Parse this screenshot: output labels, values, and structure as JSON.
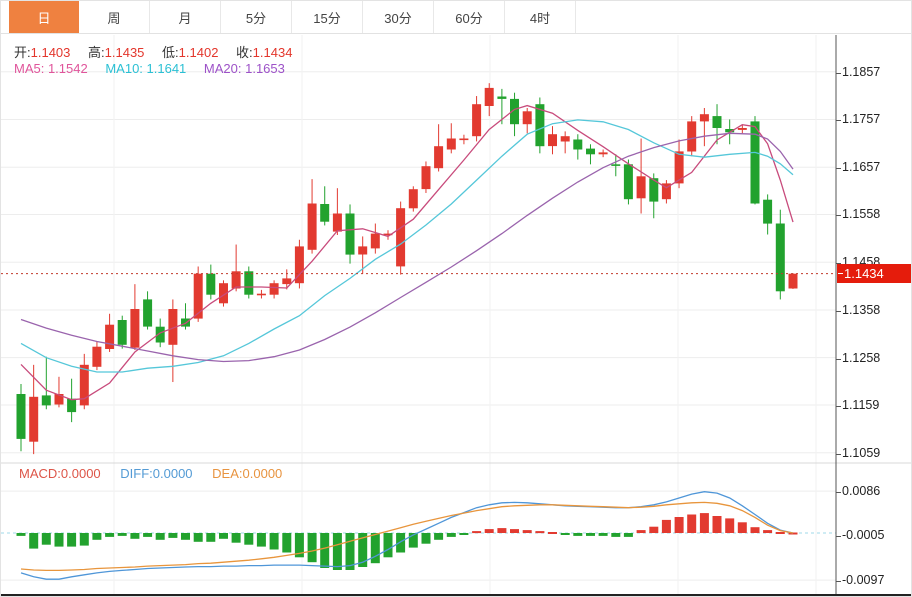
{
  "tabs": {
    "items": [
      {
        "label": "日",
        "active": true
      },
      {
        "label": "周",
        "active": false
      },
      {
        "label": "月",
        "active": false
      },
      {
        "label": "5分",
        "active": false
      },
      {
        "label": "15分",
        "active": false
      },
      {
        "label": "30分",
        "active": false
      },
      {
        "label": "60分",
        "active": false
      },
      {
        "label": "4时",
        "active": false
      }
    ]
  },
  "quote": {
    "open_label": "开:",
    "open": "1.1403",
    "high_label": "高:",
    "high": "1.1435",
    "low_label": "低:",
    "low": "1.1402",
    "close_label": "收:",
    "close": "1.1434"
  },
  "ma_legend": {
    "ma5": "MA5: 1.1542",
    "ma10": "MA10: 1.1641",
    "ma20": "MA20: 1.1653"
  },
  "price_axis": {
    "ticks": [
      "1.1857",
      "1.1757",
      "1.1657",
      "1.1558",
      "1.1458",
      "1.1358",
      "1.1258",
      "1.1159",
      "1.1059"
    ],
    "last_price": "1.1434"
  },
  "macd_panel": {
    "macd": "MACD:0.0000",
    "diff": "DIFF:0.0000",
    "dea": "DEA:0.0000",
    "ticks": [
      "0.0086",
      "-0.0005",
      "-0.0097"
    ]
  },
  "colors": {
    "tab_active_bg": "#ef8140",
    "up_candle": "#e23a30",
    "down_candle": "#22a22e",
    "ma5_line": "#c84b7c",
    "ma10_line": "#55c7d9",
    "ma20_line": "#9a64ad",
    "diff_line": "#4f96d8",
    "dea_line": "#e8953c",
    "last_price_line": "#c0392b",
    "badge_bg": "#e51c0c",
    "grid": "#ededed",
    "zero_dash": "#9fd8e8"
  },
  "chart_data": {
    "type": "candlestick",
    "title": "Daily candlestick chart with MA5/MA10/MA20 overlays and MACD sub-panel",
    "legend": [
      "MA5 1.1542",
      "MA10 1.1641",
      "MA20 1.1653"
    ],
    "ylim": [
      1.1059,
      1.1857
    ],
    "price_ticks": [
      1.1857,
      1.1757,
      1.1657,
      1.1558,
      1.1458,
      1.1358,
      1.1258,
      1.1159,
      1.1059
    ],
    "last_price": 1.1434,
    "ohlc": [
      [
        1.1182,
        1.1203,
        1.1062,
        1.1088
      ],
      [
        1.1082,
        1.1243,
        1.1056,
        1.1176
      ],
      [
        1.1179,
        1.126,
        1.115,
        1.1158
      ],
      [
        1.116,
        1.1218,
        1.1154,
        1.1182
      ],
      [
        1.1172,
        1.1214,
        1.1123,
        1.1144
      ],
      [
        1.1158,
        1.1266,
        1.115,
        1.1243
      ],
      [
        1.1239,
        1.1291,
        1.1232,
        1.1281
      ],
      [
        1.1276,
        1.135,
        1.127,
        1.1327
      ],
      [
        1.1337,
        1.1346,
        1.1277,
        1.1285
      ],
      [
        1.1279,
        1.1412,
        1.1274,
        1.136
      ],
      [
        1.138,
        1.1397,
        1.1317,
        1.1323
      ],
      [
        1.1323,
        1.134,
        1.128,
        1.129
      ],
      [
        1.1285,
        1.138,
        1.1207,
        1.136
      ],
      [
        1.134,
        1.1372,
        1.1317,
        1.1323
      ],
      [
        1.134,
        1.1449,
        1.1333,
        1.1434
      ],
      [
        1.1434,
        1.1453,
        1.138,
        1.139
      ],
      [
        1.1372,
        1.142,
        1.1365,
        1.1414
      ],
      [
        1.1403,
        1.1495,
        1.1397,
        1.1439
      ],
      [
        1.1439,
        1.1449,
        1.1382,
        1.139
      ],
      [
        1.139,
        1.14,
        1.1382,
        1.1392
      ],
      [
        1.139,
        1.142,
        1.1382,
        1.1414
      ],
      [
        1.1412,
        1.1443,
        1.1401,
        1.1424
      ],
      [
        1.1414,
        1.1505,
        1.1403,
        1.1491
      ],
      [
        1.1484,
        1.1632,
        1.1476,
        1.1581
      ],
      [
        1.158,
        1.1617,
        1.1535,
        1.1543
      ],
      [
        1.1522,
        1.1613,
        1.1515,
        1.156
      ],
      [
        1.156,
        1.1579,
        1.1455,
        1.1474
      ],
      [
        1.1474,
        1.1512,
        1.1434,
        1.1491
      ],
      [
        1.1487,
        1.1539,
        1.1476,
        1.1518
      ],
      [
        1.1515,
        1.1525,
        1.1505,
        1.1518
      ],
      [
        1.1449,
        1.1585,
        1.1432,
        1.1571
      ],
      [
        1.1571,
        1.1617,
        1.1564,
        1.1611
      ],
      [
        1.1611,
        1.1669,
        1.1603,
        1.1659
      ],
      [
        1.1655,
        1.1747,
        1.1648,
        1.1701
      ],
      [
        1.1694,
        1.1749,
        1.1686,
        1.1717
      ],
      [
        1.1715,
        1.1725,
        1.1705,
        1.1717
      ],
      [
        1.1722,
        1.1806,
        1.1711,
        1.1789
      ],
      [
        1.1785,
        1.1833,
        1.1764,
        1.1823
      ],
      [
        1.1805,
        1.1821,
        1.1747,
        1.18
      ],
      [
        1.18,
        1.1813,
        1.1722,
        1.1747
      ],
      [
        1.1747,
        1.1781,
        1.1728,
        1.1774
      ],
      [
        1.1789,
        1.1803,
        1.1686,
        1.1701
      ],
      [
        1.1701,
        1.1743,
        1.1684,
        1.1726
      ],
      [
        1.1711,
        1.1732,
        1.1686,
        1.1722
      ],
      [
        1.1715,
        1.1726,
        1.1673,
        1.1694
      ],
      [
        1.1696,
        1.1705,
        1.1663,
        1.1684
      ],
      [
        1.1684,
        1.1694,
        1.1678,
        1.1688
      ],
      [
        1.1663,
        1.1684,
        1.1638,
        1.166
      ],
      [
        1.1663,
        1.1673,
        1.1579,
        1.159
      ],
      [
        1.1592,
        1.1717,
        1.156,
        1.1638
      ],
      [
        1.1634,
        1.1644,
        1.155,
        1.1585
      ],
      [
        1.159,
        1.163,
        1.1581,
        1.1623
      ],
      [
        1.1623,
        1.1715,
        1.1613,
        1.169
      ],
      [
        1.169,
        1.1764,
        1.168,
        1.1753
      ],
      [
        1.1753,
        1.1781,
        1.1701,
        1.1768
      ],
      [
        1.1764,
        1.1789,
        1.1705,
        1.1739
      ],
      [
        1.1737,
        1.1757,
        1.1705,
        1.173
      ],
      [
        1.1735,
        1.1745,
        1.1728,
        1.1739
      ],
      [
        1.1753,
        1.1764,
        1.1579,
        1.1581
      ],
      [
        1.1589,
        1.16,
        1.1516,
        1.1539
      ],
      [
        1.1539,
        1.1568,
        1.138,
        1.1397
      ],
      [
        1.1403,
        1.1435,
        1.1402,
        1.1434
      ]
    ],
    "ma5_points": [
      [
        0,
        1.1244
      ],
      [
        2,
        1.119
      ],
      [
        4,
        1.117
      ],
      [
        5,
        1.1172
      ],
      [
        7,
        1.1205
      ],
      [
        9,
        1.127
      ],
      [
        11,
        1.131
      ],
      [
        13,
        1.133
      ],
      [
        15,
        1.1372
      ],
      [
        17,
        1.1406
      ],
      [
        19,
        1.1406
      ],
      [
        21,
        1.1404
      ],
      [
        23,
        1.146
      ],
      [
        25,
        1.1524
      ],
      [
        27,
        1.1528
      ],
      [
        29,
        1.1512
      ],
      [
        31,
        1.1548
      ],
      [
        33,
        1.161
      ],
      [
        35,
        1.1672
      ],
      [
        37,
        1.1736
      ],
      [
        39,
        1.1778
      ],
      [
        40,
        1.1786
      ],
      [
        42,
        1.177
      ],
      [
        44,
        1.1734
      ],
      [
        46,
        1.17
      ],
      [
        48,
        1.1664
      ],
      [
        50,
        1.163
      ],
      [
        51,
        1.1614
      ],
      [
        53,
        1.1646
      ],
      [
        55,
        1.1714
      ],
      [
        57,
        1.1746
      ],
      [
        58,
        1.1742
      ],
      [
        59,
        1.1706
      ],
      [
        60,
        1.163
      ],
      [
        61,
        1.1542
      ]
    ],
    "ma10_points": [
      [
        0,
        1.1288
      ],
      [
        2,
        1.1258
      ],
      [
        4,
        1.124
      ],
      [
        6,
        1.1228
      ],
      [
        8,
        1.1228
      ],
      [
        10,
        1.1236
      ],
      [
        12,
        1.124
      ],
      [
        14,
        1.1248
      ],
      [
        16,
        1.1262
      ],
      [
        18,
        1.1288
      ],
      [
        20,
        1.1318
      ],
      [
        22,
        1.1346
      ],
      [
        24,
        1.1388
      ],
      [
        26,
        1.1424
      ],
      [
        28,
        1.1464
      ],
      [
        30,
        1.1496
      ],
      [
        32,
        1.1536
      ],
      [
        34,
        1.158
      ],
      [
        36,
        1.163
      ],
      [
        38,
        1.168
      ],
      [
        40,
        1.1726
      ],
      [
        42,
        1.1748
      ],
      [
        44,
        1.1756
      ],
      [
        46,
        1.1752
      ],
      [
        48,
        1.1736
      ],
      [
        50,
        1.1708
      ],
      [
        52,
        1.1684
      ],
      [
        54,
        1.1678
      ],
      [
        56,
        1.1684
      ],
      [
        58,
        1.1688
      ],
      [
        59,
        1.168
      ],
      [
        60,
        1.1664
      ],
      [
        61,
        1.1641
      ]
    ],
    "ma20_points": [
      [
        0,
        1.1338
      ],
      [
        2,
        1.132
      ],
      [
        4,
        1.1305
      ],
      [
        6,
        1.1292
      ],
      [
        8,
        1.1282
      ],
      [
        10,
        1.1272
      ],
      [
        12,
        1.1262
      ],
      [
        14,
        1.1254
      ],
      [
        16,
        1.125
      ],
      [
        18,
        1.1252
      ],
      [
        20,
        1.126
      ],
      [
        22,
        1.1274
      ],
      [
        24,
        1.1296
      ],
      [
        26,
        1.1322
      ],
      [
        28,
        1.1352
      ],
      [
        30,
        1.1384
      ],
      [
        32,
        1.1416
      ],
      [
        34,
        1.1448
      ],
      [
        36,
        1.1482
      ],
      [
        38,
        1.1518
      ],
      [
        40,
        1.1556
      ],
      [
        42,
        1.1592
      ],
      [
        44,
        1.1626
      ],
      [
        46,
        1.1656
      ],
      [
        48,
        1.168
      ],
      [
        50,
        1.1698
      ],
      [
        52,
        1.1712
      ],
      [
        54,
        1.1722
      ],
      [
        56,
        1.1728
      ],
      [
        58,
        1.1726
      ],
      [
        59,
        1.1716
      ],
      [
        60,
        1.169
      ],
      [
        61,
        1.1653
      ]
    ],
    "macd": {
      "values_scale": 0.0001,
      "axis_ticks": [
        0.0086,
        -0.0005,
        -0.0097
      ],
      "final_values": {
        "macd": 0.0,
        "diff": 0.0,
        "dea": 0.0
      },
      "hist": [
        -6,
        -32,
        -24,
        -28,
        -28,
        -26,
        -14,
        -8,
        -6,
        -12,
        -8,
        -14,
        -10,
        -14,
        -18,
        -18,
        -12,
        -20,
        -24,
        -28,
        -34,
        -40,
        -50,
        -60,
        -72,
        -76,
        -76,
        -70,
        -62,
        -50,
        -40,
        -30,
        -22,
        -14,
        -8,
        -4,
        4,
        8,
        10,
        8,
        6,
        4,
        2,
        -4,
        -6,
        -6,
        -6,
        -8,
        -8,
        6,
        13,
        27,
        33,
        38,
        41,
        35,
        30,
        22,
        12,
        6,
        2,
        1
      ],
      "diff": [
        -82,
        -90,
        -95,
        -95,
        -90,
        -86,
        -82,
        -79,
        -77,
        -75,
        -73,
        -72,
        -71,
        -70,
        -69,
        -69,
        -68,
        -68,
        -67,
        -67,
        -66,
        -66,
        -66,
        -67,
        -68,
        -69,
        -67,
        -60,
        -48,
        -34,
        -18,
        -4,
        8,
        20,
        32,
        42,
        52,
        58,
        62,
        63,
        62,
        60,
        58,
        56,
        55,
        54,
        53,
        52,
        52,
        54,
        58,
        64,
        72,
        80,
        85,
        82,
        72,
        56,
        38,
        20,
        6,
        0
      ],
      "dea": [
        -74,
        -76,
        -77,
        -77,
        -76,
        -75,
        -73,
        -72,
        -71,
        -70,
        -68,
        -67,
        -66,
        -65,
        -63,
        -62,
        -60,
        -58,
        -56,
        -53,
        -50,
        -46,
        -42,
        -37,
        -31,
        -24,
        -17,
        -10,
        -3,
        4,
        11,
        18,
        24,
        30,
        36,
        41,
        46,
        50,
        54,
        56,
        57,
        58,
        58,
        57,
        56,
        55,
        54,
        53,
        52,
        53,
        55,
        58,
        60,
        62,
        63,
        61,
        56,
        46,
        32,
        16,
        5,
        0
      ]
    }
  }
}
